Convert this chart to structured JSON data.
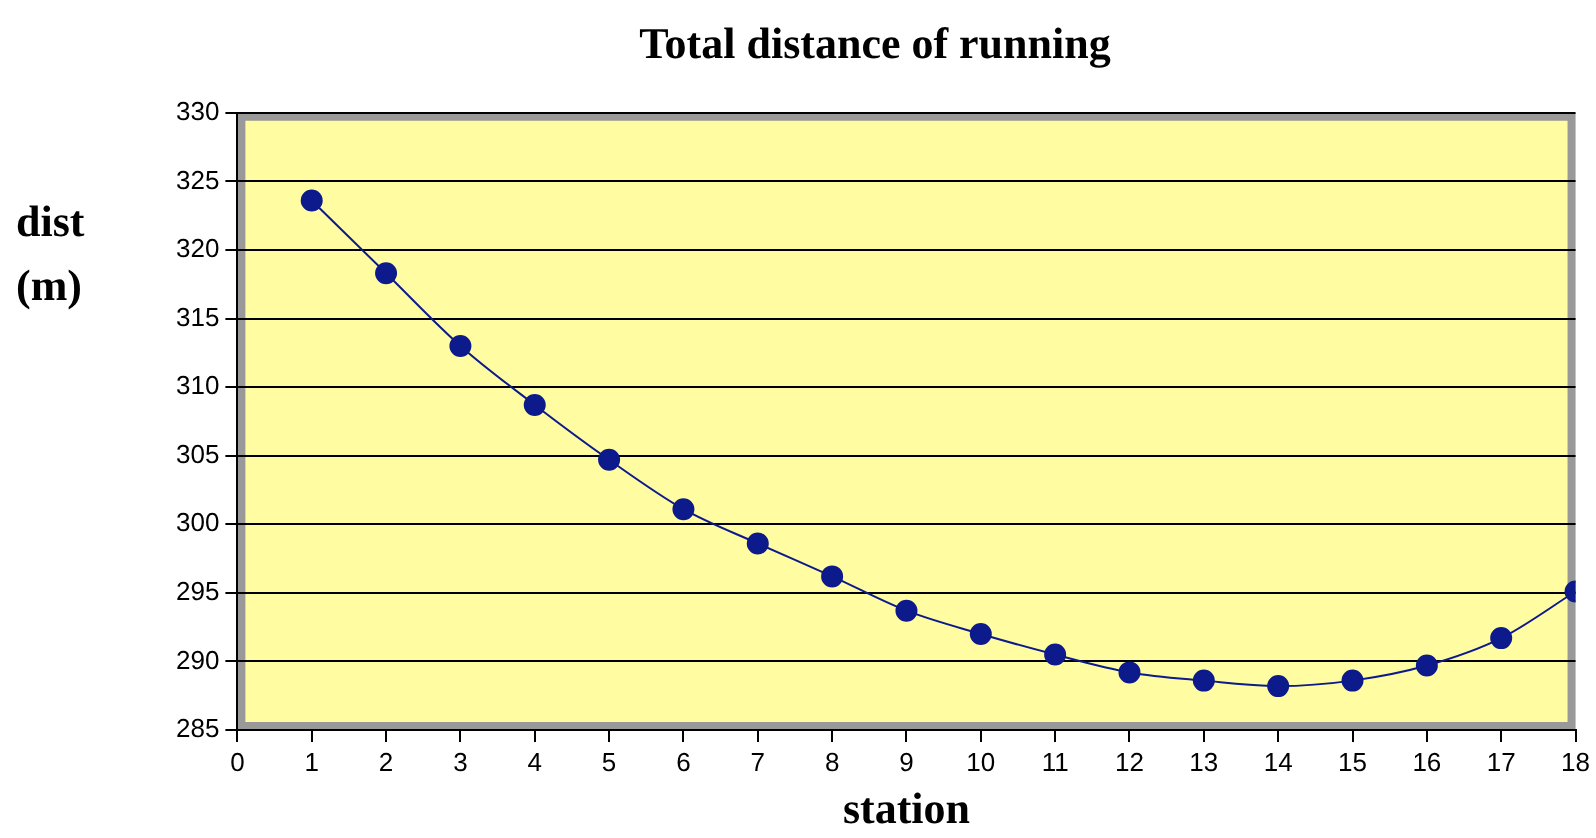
{
  "chart_data": {
    "type": "line",
    "title": "Total distance of running",
    "xlabel": "station",
    "ylabel": "dist (m)",
    "x": [
      1,
      2,
      3,
      4,
      5,
      6,
      7,
      8,
      9,
      10,
      11,
      12,
      13,
      14,
      15,
      16,
      17,
      18
    ],
    "series": [
      {
        "color": "#0c1a8c",
        "values": [
          323.6,
          318.3,
          313,
          308.7,
          304.7,
          301.1,
          298.6,
          296.2,
          293.7,
          292,
          290.5,
          289.2,
          288.6,
          288.2,
          288.6,
          289.7,
          291.7,
          295.1
        ]
      }
    ],
    "xlim": [
      0,
      18
    ],
    "xticks": [
      0,
      1,
      2,
      3,
      4,
      5,
      6,
      7,
      8,
      9,
      10,
      11,
      12,
      13,
      14,
      15,
      16,
      17,
      18
    ],
    "ylim": [
      285,
      330
    ],
    "yticks": [
      285,
      290,
      295,
      300,
      305,
      310,
      315,
      320,
      325,
      330
    ],
    "grid": "y",
    "legend": false,
    "marker": "circle",
    "line_style": "solid"
  }
}
